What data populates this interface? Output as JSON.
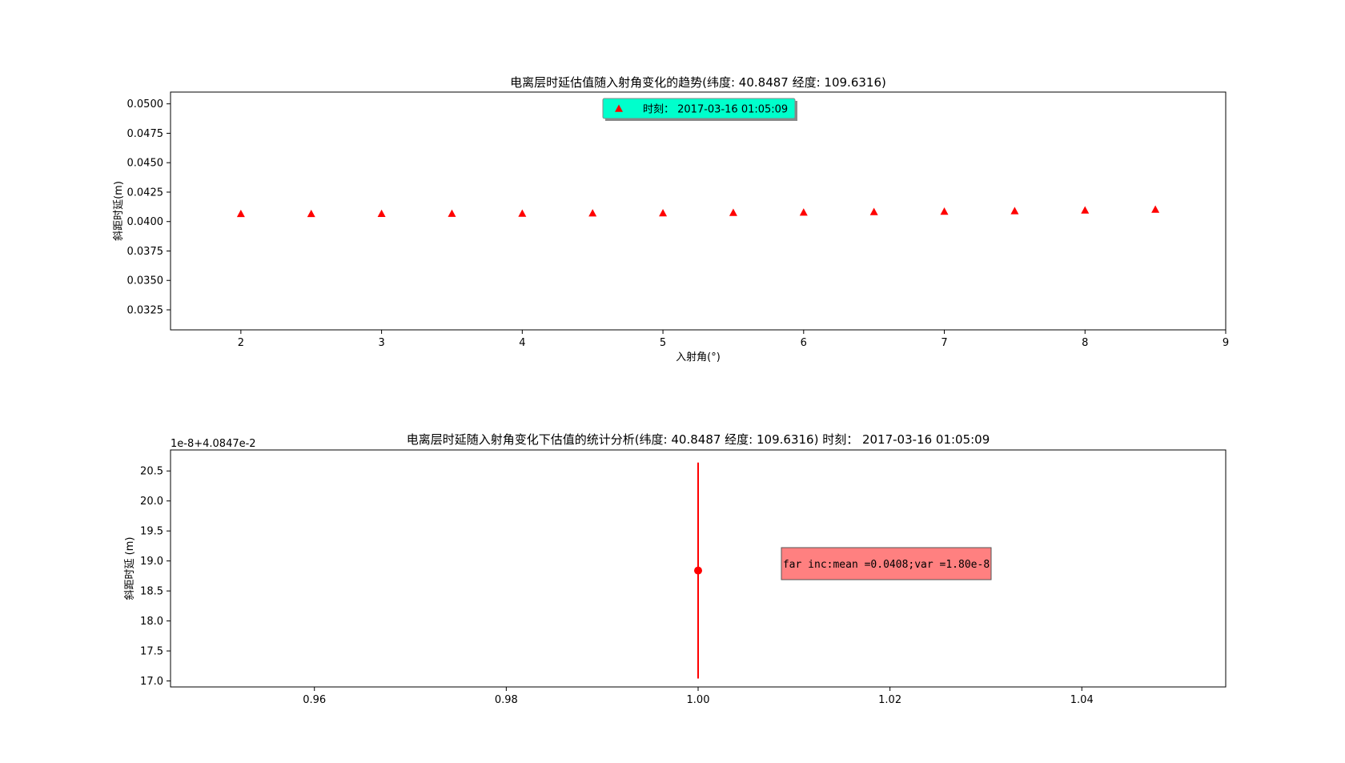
{
  "chart_data": [
    {
      "type": "scatter",
      "title": "电离层时延估值随入射角变化的趋势(纬度: 40.8487 经度: 109.6316)",
      "xlabel": "入射角(°)",
      "ylabel": "斜距时延(m)",
      "xlim": [
        1.5,
        9
      ],
      "ylim": [
        0.0308,
        0.051
      ],
      "xticks": [
        2,
        3,
        4,
        5,
        6,
        7,
        8,
        9
      ],
      "yticks": [
        0.0325,
        0.035,
        0.0375,
        0.04,
        0.0425,
        0.045,
        0.0475,
        0.05
      ],
      "ytick_labels": [
        "0.0325",
        "0.0350",
        "0.0375",
        "0.0400",
        "0.0425",
        "0.0450",
        "0.0475",
        "0.0500"
      ],
      "grid": false,
      "legend": {
        "position": "upper center",
        "background": "#00ffcc"
      },
      "series": [
        {
          "name": "时刻： 2017-03-16 01:05:09",
          "marker": "triangle",
          "color": "#ff0000",
          "x": [
            2,
            2.5,
            3,
            3.5,
            4,
            4.5,
            5,
            5.5,
            6,
            6.5,
            7,
            7.5,
            8,
            8.5
          ],
          "y": [
            0.04067,
            0.04067,
            0.04068,
            0.04069,
            0.0407,
            0.04072,
            0.04073,
            0.04076,
            0.04079,
            0.04083,
            0.04087,
            0.04091,
            0.04097,
            0.04104
          ]
        }
      ]
    },
    {
      "type": "errorbar",
      "title": "电离层时延随入射角变化下估值的统计分析(纬度: 40.8487 经度: 109.6316) 时刻： 2017-03-16 01:05:09",
      "xlabel": "",
      "ylabel": "斜距时延 (m)",
      "offset_text": "1e-8+4.0847e-2",
      "xlim": [
        0.945,
        1.055
      ],
      "ylim": [
        16.9,
        20.85
      ],
      "xticks": [
        0.96,
        0.98,
        1.0,
        1.02,
        1.04
      ],
      "xtick_labels": [
        "0.96",
        "0.98",
        "1.00",
        "1.02",
        "1.04"
      ],
      "yticks": [
        17.0,
        17.5,
        18.0,
        18.5,
        19.0,
        19.5,
        20.0,
        20.5
      ],
      "ytick_labels": [
        "17.0",
        "17.5",
        "18.0",
        "18.5",
        "19.0",
        "19.5",
        "20.0",
        "20.5"
      ],
      "grid": false,
      "points": [
        {
          "x": 1.0,
          "y": 18.84,
          "yerr": 1.8,
          "color": "#ff0000"
        }
      ],
      "annotation": {
        "text": "far inc:mean =0.0408;var =1.80e-8",
        "position": "center-right",
        "background": "#ff8080"
      }
    }
  ]
}
